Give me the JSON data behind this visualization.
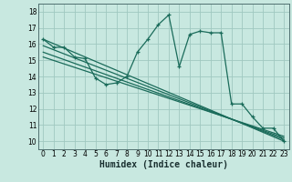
{
  "xlabel": "Humidex (Indice chaleur)",
  "bg_color": "#c8e8e0",
  "grid_color": "#a0c8c0",
  "line_color": "#1a6b5a",
  "xlim": [
    -0.5,
    23.5
  ],
  "ylim": [
    9.5,
    18.5
  ],
  "xticks": [
    0,
    1,
    2,
    3,
    4,
    5,
    6,
    7,
    8,
    9,
    10,
    11,
    12,
    13,
    14,
    15,
    16,
    17,
    18,
    19,
    20,
    21,
    22,
    23
  ],
  "yticks": [
    10,
    11,
    12,
    13,
    14,
    15,
    16,
    17,
    18
  ],
  "main_series_x": [
    0,
    1,
    2,
    3,
    4,
    5,
    6,
    7,
    8,
    9,
    10,
    11,
    12,
    13,
    14,
    15,
    16,
    17,
    18,
    19,
    20,
    21,
    22,
    23
  ],
  "main_series_y": [
    16.3,
    15.8,
    15.8,
    15.2,
    15.1,
    13.9,
    13.5,
    13.6,
    14.0,
    15.5,
    16.3,
    17.2,
    17.8,
    14.6,
    16.6,
    16.8,
    16.7,
    16.7,
    12.3,
    12.3,
    11.5,
    10.8,
    10.8,
    10.0
  ],
  "line1_x": [
    0,
    23
  ],
  "line1_y": [
    16.3,
    10.0
  ],
  "line2_x": [
    0,
    23
  ],
  "line2_y": [
    15.9,
    10.1
  ],
  "line3_x": [
    0,
    23
  ],
  "line3_y": [
    15.5,
    10.2
  ],
  "line4_x": [
    0,
    23
  ],
  "line4_y": [
    15.2,
    10.3
  ],
  "tick_fontsize": 5.5,
  "xlabel_fontsize": 7
}
